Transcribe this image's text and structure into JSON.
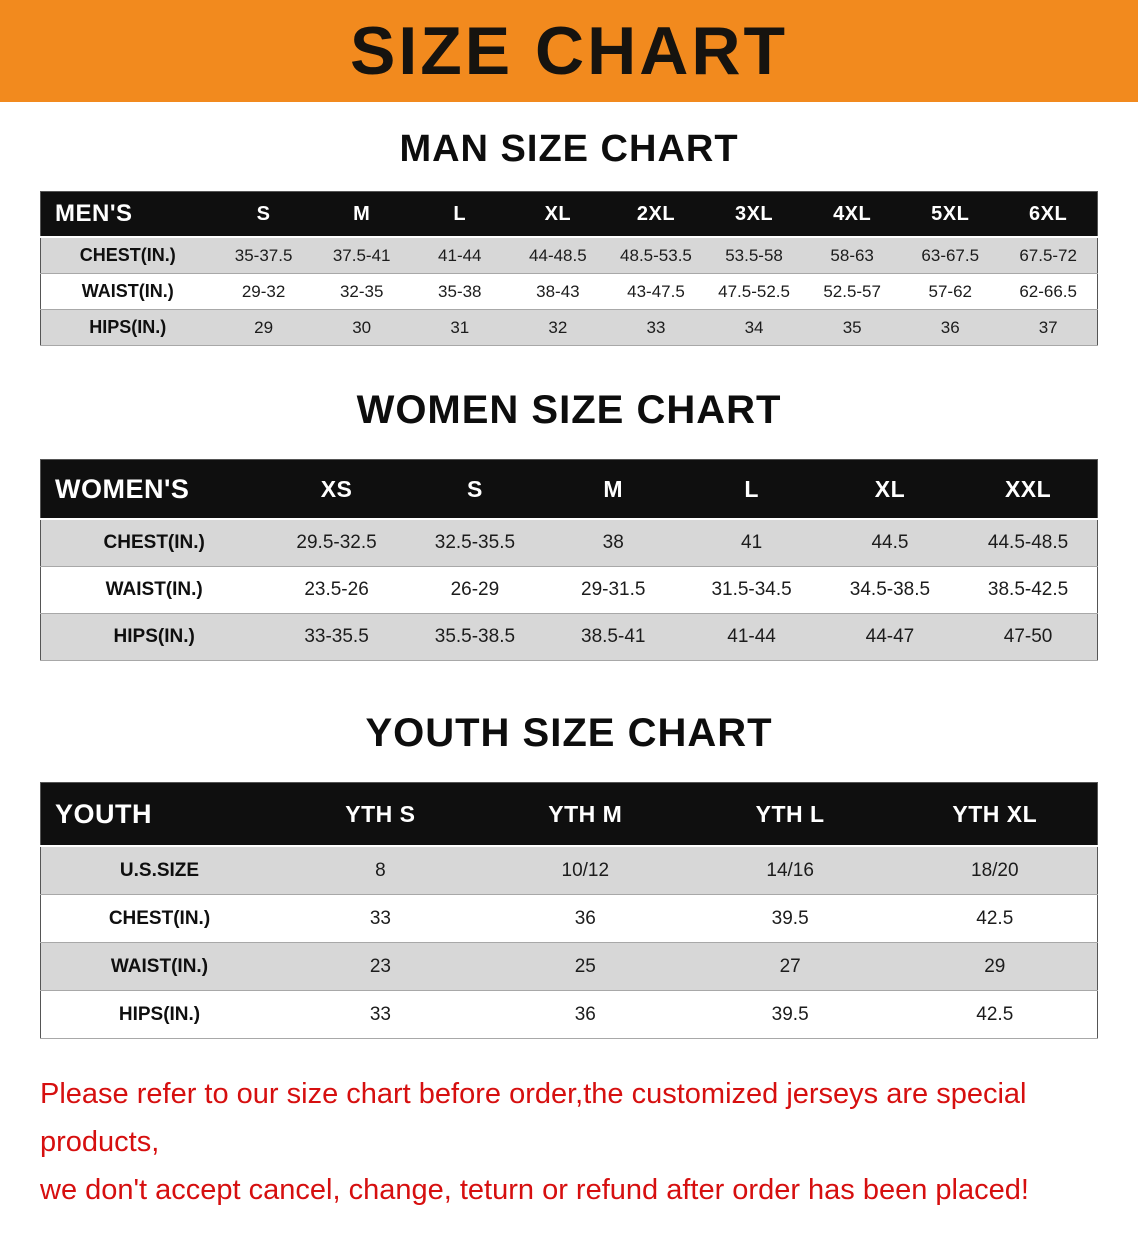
{
  "banner": {
    "title": "SIZE CHART"
  },
  "sections": [
    {
      "heading": "MAN SIZE CHART",
      "table_label": "MEN'S",
      "header": [
        "MEN'S",
        "S",
        "M",
        "L",
        "XL",
        "2XL",
        "3XL",
        "4XL",
        "5XL",
        "6XL"
      ],
      "rows": [
        [
          "CHEST(IN.)",
          "35-37.5",
          "37.5-41",
          "41-44",
          "44-48.5",
          "48.5-53.5",
          "53.5-58",
          "58-63",
          "63-67.5",
          "67.5-72"
        ],
        [
          "WAIST(IN.)",
          "29-32",
          "32-35",
          "35-38",
          "38-43",
          "43-47.5",
          "47.5-52.5",
          "52.5-57",
          "57-62",
          "62-66.5"
        ],
        [
          "HIPS(IN.)",
          "29",
          "30",
          "31",
          "32",
          "33",
          "34",
          "35",
          "36",
          "37"
        ]
      ]
    },
    {
      "heading": "WOMEN SIZE CHART",
      "table_label": "WOMEN'S",
      "header": [
        "WOMEN'S",
        "XS",
        "S",
        "M",
        "L",
        "XL",
        "XXL"
      ],
      "rows": [
        [
          "CHEST(IN.)",
          "29.5-32.5",
          "32.5-35.5",
          "38",
          "41",
          "44.5",
          "44.5-48.5"
        ],
        [
          "WAIST(IN.)",
          "23.5-26",
          "26-29",
          "29-31.5",
          "31.5-34.5",
          "34.5-38.5",
          "38.5-42.5"
        ],
        [
          "HIPS(IN.)",
          "33-35.5",
          "35.5-38.5",
          "38.5-41",
          "41-44",
          "44-47",
          "47-50"
        ]
      ]
    },
    {
      "heading": "YOUTH SIZE CHART",
      "table_label": "YOUTH",
      "header": [
        "YOUTH",
        "YTH S",
        "YTH M",
        "YTH L",
        "YTH XL"
      ],
      "rows": [
        [
          "U.S.SIZE",
          "8",
          "10/12",
          "14/16",
          "18/20"
        ],
        [
          "CHEST(IN.)",
          "33",
          "36",
          "39.5",
          "42.5"
        ],
        [
          "WAIST(IN.)",
          "23",
          "25",
          "27",
          "29"
        ],
        [
          "HIPS(IN.)",
          "33",
          "36",
          "39.5",
          "42.5"
        ]
      ]
    }
  ],
  "disclaimer": {
    "line1": "Please refer to our size chart before order,the customized jerseys are special products,",
    "line2": "we don't accept cancel, change, teturn or refund after order has been placed!"
  },
  "colors": {
    "banner_bg": "#f28a1e",
    "header_row_bg": "#0f0f0f",
    "stripe_row_bg": "#d7d7d7",
    "disclaimer_text": "#d60f0f"
  }
}
